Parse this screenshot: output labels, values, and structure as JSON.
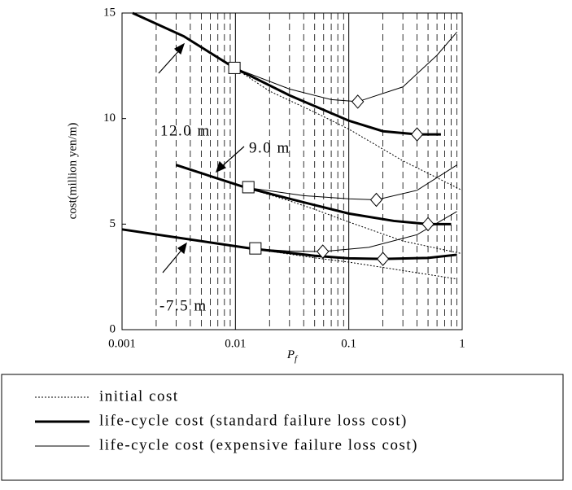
{
  "chart_data": {
    "type": "line",
    "ylabel": "cost(million yen/m)",
    "xlabel": "P",
    "xlabel_sub": "f",
    "xlim": [
      0.001,
      1
    ],
    "xticks": [
      0.001,
      0.01,
      0.1,
      1
    ],
    "xscale": "log",
    "ylim": [
      0,
      15
    ],
    "yticks": [
      0,
      5,
      10,
      15
    ],
    "xminor_grid": true,
    "series": [
      {
        "name": "initial cost",
        "color": "#000000",
        "width": 1,
        "dash": "2,2",
        "lines": [
          {
            "x": [
              0.00124,
              0.0035,
              0.0098,
              0.02,
              0.05,
              0.1,
              0.3,
              1
            ],
            "values": [
              15,
              13.9,
              12.4,
              11.3,
              10.3,
              9.5,
              8.0,
              6.6
            ]
          },
          {
            "x": [
              0.003,
              0.012,
              0.03,
              0.05,
              0.1,
              0.3,
              1
            ],
            "values": [
              7.8,
              6.75,
              6.1,
              5.7,
              5.1,
              4.2,
              3.6
            ]
          },
          {
            "x": [
              0.001,
              0.0135,
              0.05,
              0.1,
              0.3,
              0.9
            ],
            "values": [
              4.75,
              3.85,
              3.4,
              3.2,
              2.8,
              2.4
            ]
          }
        ]
      },
      {
        "name": "life-cycle cost (standard failure loss cost)",
        "color": "#000000",
        "width": 3,
        "dash": "",
        "lines": [
          {
            "x": [
              0.00124,
              0.0035,
              0.0098,
              0.03,
              0.1,
              0.2,
              0.4,
              0.65
            ],
            "values": [
              15,
              13.9,
              12.4,
              11.1,
              9.9,
              9.4,
              9.25,
              9.25
            ]
          },
          {
            "x": [
              0.003,
              0.012,
              0.03,
              0.1,
              0.25,
              0.5,
              0.8
            ],
            "values": [
              7.8,
              6.75,
              6.2,
              5.5,
              5.15,
              5.0,
              5.0
            ]
          },
          {
            "x": [
              0.001,
              0.0135,
              0.05,
              0.1,
              0.2,
              0.5,
              0.9
            ],
            "values": [
              4.75,
              3.85,
              3.5,
              3.38,
              3.35,
              3.4,
              3.55
            ]
          }
        ]
      },
      {
        "name": "life-cycle cost (expensive failure loss cost)",
        "color": "#000000",
        "width": 1,
        "dash": "",
        "lines": [
          {
            "x": [
              0.00124,
              0.0035,
              0.0098,
              0.03,
              0.07,
              0.12,
              0.3,
              0.6,
              0.9
            ],
            "values": [
              15,
              13.9,
              12.4,
              11.4,
              10.9,
              10.8,
              11.5,
              13.0,
              14.1
            ]
          },
          {
            "x": [
              0.003,
              0.012,
              0.04,
              0.1,
              0.175,
              0.4,
              0.9
            ],
            "values": [
              7.8,
              6.75,
              6.35,
              6.2,
              6.15,
              6.6,
              7.8
            ]
          },
          {
            "x": [
              0.001,
              0.0135,
              0.03,
              0.059,
              0.15,
              0.4,
              0.9
            ],
            "values": [
              4.75,
              3.85,
              3.72,
              3.7,
              3.9,
              4.5,
              5.6
            ]
          }
        ]
      }
    ],
    "markers": [
      {
        "shape": "square",
        "x": [
          0.0098,
          0.013,
          0.015
        ],
        "values": [
          12.4,
          6.75,
          3.85
        ]
      },
      {
        "shape": "diamond",
        "x": [
          0.12,
          0.4,
          0.175,
          0.5,
          0.059,
          0.2
        ],
        "values": [
          10.8,
          9.25,
          6.15,
          5.0,
          3.7,
          3.35
        ]
      }
    ],
    "annotations": [
      "12.0 m",
      "9.0 m",
      "-7.5 m"
    ]
  }
}
